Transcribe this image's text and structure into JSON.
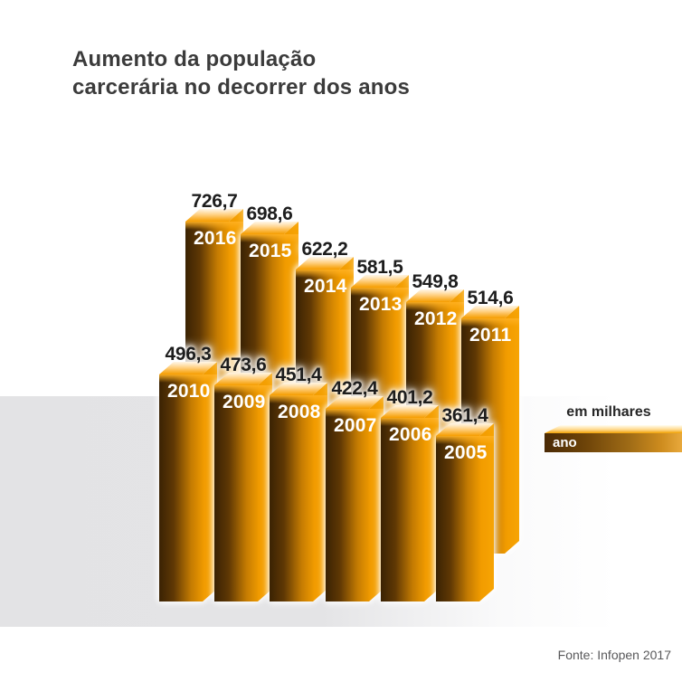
{
  "title": {
    "line1": "Aumento da população",
    "line2": "carcerária no decorrer dos anos"
  },
  "legend": {
    "value_label": "em milhares",
    "axis_label": "ano"
  },
  "source": "Fonte: Infopen 2017",
  "colors": {
    "bar_bright": "#f7a404",
    "bar_dark": "#3a2203",
    "bar_top_light": "#fff3d8",
    "band_gray": "#e3e3e5",
    "title_text": "#3b3b3b",
    "value_text": "#1d1d1d",
    "year_text": "#ffffff",
    "source_text": "#58585a"
  },
  "chart_data": {
    "type": "bar",
    "title": "Aumento da população carcerária no decorrer dos anos",
    "unit_label": "em milhares",
    "xlabel": "ano",
    "ylabel": "",
    "legend_position": "right",
    "grid": false,
    "rows": [
      {
        "name": "back-row",
        "bars": [
          {
            "year": "2016",
            "value": 726.7,
            "label": "726,7"
          },
          {
            "year": "2015",
            "value": 698.6,
            "label": "698,6"
          },
          {
            "year": "2014",
            "value": 622.2,
            "label": "622,2"
          },
          {
            "year": "2013",
            "value": 581.5,
            "label": "581,5"
          },
          {
            "year": "2012",
            "value": 549.8,
            "label": "549,8"
          },
          {
            "year": "2011",
            "value": 514.6,
            "label": "514,6"
          }
        ]
      },
      {
        "name": "front-row",
        "bars": [
          {
            "year": "2010",
            "value": 496.3,
            "label": "496,3"
          },
          {
            "year": "2009",
            "value": 473.6,
            "label": "473,6"
          },
          {
            "year": "2008",
            "value": 451.4,
            "label": "451,4"
          },
          {
            "year": "2007",
            "value": 422.4,
            "label": "422,4"
          },
          {
            "year": "2006",
            "value": 401.2,
            "label": "401,2"
          },
          {
            "year": "2005",
            "value": 361.4,
            "label": "361,4"
          }
        ]
      }
    ]
  }
}
